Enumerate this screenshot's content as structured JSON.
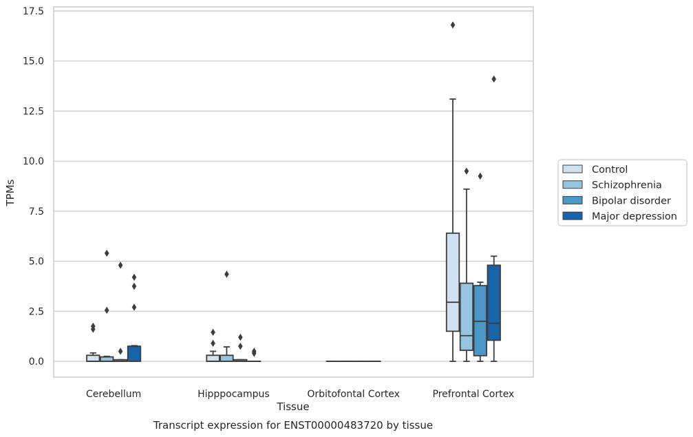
{
  "chart_data": {
    "type": "box",
    "title": "",
    "xlabel": "Tissue",
    "ylabel": "TPMs",
    "caption": "Transcript expression for ENST00000483720 by tissue",
    "ylim": [
      -0.8,
      17.6
    ],
    "yticks": [
      0.0,
      2.5,
      5.0,
      7.5,
      10.0,
      12.5,
      15.0,
      17.5
    ],
    "ytick_labels": [
      "0.0",
      "2.5",
      "5.0",
      "7.5",
      "10.0",
      "12.5",
      "15.0",
      "17.5"
    ],
    "grid": "horizontal",
    "legend_position": "right",
    "categories": [
      "Cerebellum",
      "Hipppocampus",
      "Orbitofontal Cortex",
      "Prefrontal Cortex"
    ],
    "series": [
      {
        "name": "Control",
        "color": "#d0e1f2",
        "boxes": [
          {
            "whisker_low": 0.0,
            "q1": 0.0,
            "median": 0.0,
            "q3": 0.3,
            "whisker_high": 0.42,
            "outliers": [
              1.6,
              1.75
            ]
          },
          {
            "whisker_low": 0.0,
            "q1": 0.0,
            "median": 0.0,
            "q3": 0.3,
            "whisker_high": 0.5,
            "outliers": [
              0.9,
              1.45
            ]
          },
          {
            "whisker_low": 0.0,
            "q1": 0.0,
            "median": 0.0,
            "q3": 0.0,
            "whisker_high": 0.0,
            "outliers": []
          },
          {
            "whisker_low": 0.0,
            "q1": 1.5,
            "median": 2.95,
            "q3": 6.4,
            "whisker_high": 13.1,
            "outliers": [
              16.8
            ]
          }
        ]
      },
      {
        "name": "Schizophrenia",
        "color": "#94c4df",
        "boxes": [
          {
            "whisker_low": 0.0,
            "q1": 0.0,
            "median": 0.0,
            "q3": 0.22,
            "whisker_high": 0.25,
            "outliers": [
              2.55,
              5.4
            ]
          },
          {
            "whisker_low": 0.0,
            "q1": 0.0,
            "median": 0.0,
            "q3": 0.3,
            "whisker_high": 0.72,
            "outliers": [
              4.35
            ]
          },
          {
            "whisker_low": 0.0,
            "q1": 0.0,
            "median": 0.0,
            "q3": 0.0,
            "whisker_high": 0.0,
            "outliers": []
          },
          {
            "whisker_low": 0.0,
            "q1": 0.55,
            "median": 1.28,
            "q3": 3.9,
            "whisker_high": 8.6,
            "outliers": [
              9.5
            ]
          }
        ]
      },
      {
        "name": "Bipolar disorder",
        "color": "#4a98c9",
        "boxes": [
          {
            "whisker_low": 0.0,
            "q1": 0.0,
            "median": 0.0,
            "q3": 0.08,
            "whisker_high": 0.08,
            "outliers": [
              0.5,
              4.8
            ]
          },
          {
            "whisker_low": 0.0,
            "q1": 0.0,
            "median": 0.0,
            "q3": 0.08,
            "whisker_high": 0.08,
            "outliers": [
              0.75,
              1.2
            ]
          },
          {
            "whisker_low": 0.0,
            "q1": 0.0,
            "median": 0.0,
            "q3": 0.0,
            "whisker_high": 0.0,
            "outliers": []
          },
          {
            "whisker_low": 0.0,
            "q1": 0.28,
            "median": 2.0,
            "q3": 3.78,
            "whisker_high": 3.95,
            "outliers": [
              9.25
            ]
          }
        ]
      },
      {
        "name": "Major depression",
        "color": "#1764ab",
        "boxes": [
          {
            "whisker_low": 0.0,
            "q1": 0.0,
            "median": 0.75,
            "q3": 0.75,
            "whisker_high": 0.78,
            "outliers": [
              2.7,
              3.75,
              4.2
            ]
          },
          {
            "whisker_low": 0.0,
            "q1": 0.0,
            "median": 0.0,
            "q3": 0.0,
            "whisker_high": 0.0,
            "outliers": [
              0.4,
              0.5
            ]
          },
          {
            "whisker_low": 0.0,
            "q1": 0.0,
            "median": 0.0,
            "q3": 0.0,
            "whisker_high": 0.0,
            "outliers": []
          },
          {
            "whisker_low": 0.0,
            "q1": 1.05,
            "median": 1.9,
            "q3": 4.8,
            "whisker_high": 5.25,
            "outliers": [
              14.1
            ]
          }
        ]
      }
    ]
  }
}
